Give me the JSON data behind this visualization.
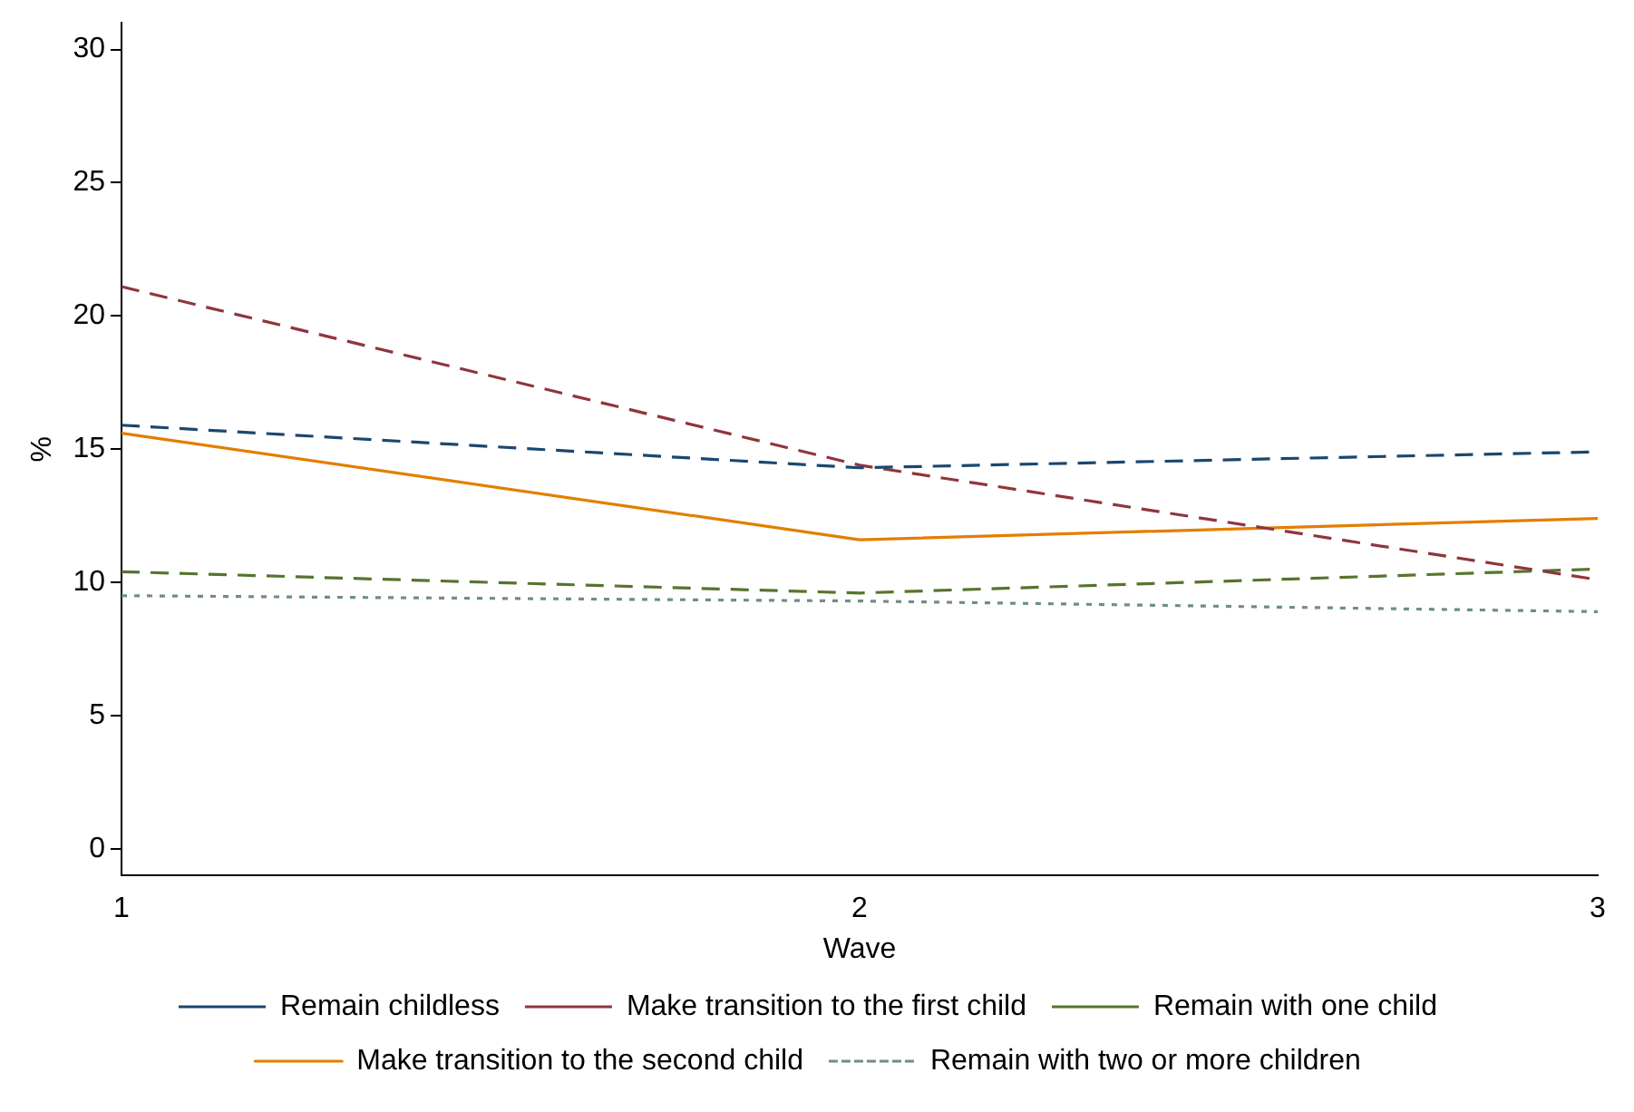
{
  "chart_data": {
    "type": "line",
    "xlabel": "Wave",
    "ylabel": "%",
    "x": [
      1,
      2,
      3
    ],
    "xlim": [
      1,
      3
    ],
    "xticks": [
      1,
      2,
      3
    ],
    "ylim": [
      -1,
      31
    ],
    "yticks": [
      0,
      5,
      10,
      15,
      20,
      25,
      30
    ],
    "grid": false,
    "legend": "bottom",
    "marker": "none",
    "series": [
      {
        "name": "Remain childless",
        "color": "#1a476f",
        "line_style": "dashed",
        "values": [
          15.9,
          14.3,
          14.9
        ]
      },
      {
        "name": "Make transition to the first child",
        "color": "#90353b",
        "line_style": "dashed",
        "values": [
          21.1,
          14.4,
          10.1
        ]
      },
      {
        "name": "Remain with one child",
        "color": "#55752f",
        "line_style": "dashed",
        "values": [
          10.4,
          9.6,
          10.5
        ]
      },
      {
        "name": "Make transition to the second child",
        "color": "#e37e00",
        "line_style": "solid",
        "values": [
          15.6,
          11.6,
          12.4
        ]
      },
      {
        "name": "Remain with two or more children",
        "color": "#6e8e84",
        "line_style": "dotted",
        "values": [
          9.5,
          9.3,
          8.9
        ]
      }
    ]
  }
}
